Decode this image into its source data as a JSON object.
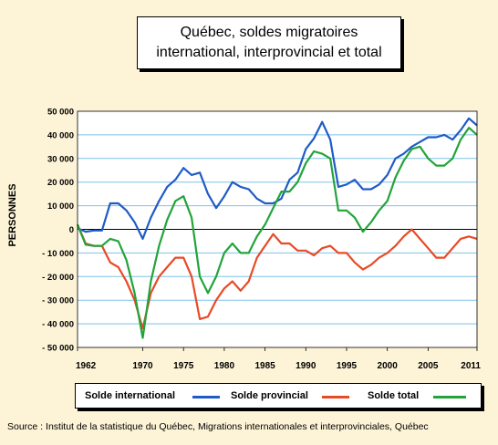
{
  "chart_data": {
    "type": "line",
    "title": [
      "Québec, soldes migratoires",
      "international, interprovincial et total"
    ],
    "ylabel": "PERSONNES",
    "ylim": [
      -50000,
      50000
    ],
    "yticks": [
      -50000,
      -40000,
      -30000,
      -20000,
      -10000,
      0,
      10000,
      20000,
      30000,
      40000,
      50000
    ],
    "ytick_labels": [
      "- 50 000",
      "- 40 000",
      "- 30 000",
      "- 20 000",
      "- 10 000",
      "0",
      "10 000",
      "20 000",
      "30 000",
      "40 000",
      "50 000"
    ],
    "xlim": [
      1962,
      2011
    ],
    "xticks": [
      1962,
      1970,
      1975,
      1980,
      1985,
      1990,
      1995,
      2000,
      2005,
      2011
    ],
    "xtick_labels": [
      "1962",
      "1970",
      "1975",
      "1980",
      "1985",
      "1990",
      "1995",
      "2000",
      "2005",
      "2011"
    ],
    "grid": true,
    "legend_position": "bottom",
    "series": [
      {
        "name": "Solde international",
        "color": "#1f5bc7",
        "x": [
          1962,
          1963,
          1964,
          1965,
          1966,
          1967,
          1968,
          1969,
          1970,
          1971,
          1972,
          1973,
          1974,
          1975,
          1976,
          1977,
          1978,
          1979,
          1980,
          1981,
          1982,
          1983,
          1984,
          1985,
          1986,
          1987,
          1988,
          1989,
          1990,
          1991,
          1992,
          1993,
          1994,
          1995,
          1996,
          1997,
          1998,
          1999,
          2000,
          2001,
          2002,
          2003,
          2004,
          2005,
          2006,
          2007,
          2008,
          2009,
          2010,
          2011
        ],
        "y": [
          500,
          -1000,
          -500,
          -500,
          11000,
          11000,
          8000,
          3000,
          -4000,
          5000,
          12000,
          18000,
          21000,
          26000,
          23000,
          24000,
          15000,
          9000,
          14000,
          20000,
          18000,
          17000,
          13000,
          11000,
          11000,
          13000,
          21000,
          24000,
          34000,
          38500,
          45500,
          38000,
          18000,
          19000,
          21000,
          17000,
          17000,
          19000,
          23000,
          30000,
          32000,
          35000,
          37000,
          39000,
          39000,
          40000,
          38000,
          42000,
          47000,
          44000
        ]
      },
      {
        "name": "Solde provincial",
        "color": "#e84a27",
        "x": [
          1962,
          1963,
          1964,
          1965,
          1966,
          1967,
          1968,
          1969,
          1970,
          1971,
          1972,
          1973,
          1974,
          1975,
          1976,
          1977,
          1978,
          1979,
          1980,
          1981,
          1982,
          1983,
          1984,
          1985,
          1986,
          1987,
          1988,
          1989,
          1990,
          1991,
          1992,
          1993,
          1994,
          1995,
          1996,
          1997,
          1998,
          1999,
          2000,
          2001,
          2002,
          2003,
          2004,
          2005,
          2006,
          2007,
          2008,
          2009,
          2010,
          2011
        ],
        "y": [
          2000,
          -6000,
          -7000,
          -7000,
          -14000,
          -16000,
          -22000,
          -30000,
          -42000,
          -27000,
          -20000,
          -16000,
          -12000,
          -12000,
          -20000,
          -38000,
          -37000,
          -30000,
          -25000,
          -22000,
          -26000,
          -22000,
          -12000,
          -7000,
          -2000,
          -6000,
          -6000,
          -9000,
          -9000,
          -11000,
          -8000,
          -7000,
          -10000,
          -10000,
          -14000,
          -17000,
          -15000,
          -12000,
          -10000,
          -7000,
          -3000,
          0,
          -4000,
          -8000,
          -12000,
          -12000,
          -8000,
          -4000,
          -3000,
          -4000
        ]
      },
      {
        "name": "Solde total",
        "color": "#22a43a",
        "x": [
          1962,
          1963,
          1964,
          1965,
          1966,
          1967,
          1968,
          1969,
          1970,
          1971,
          1972,
          1973,
          1974,
          1975,
          1976,
          1977,
          1978,
          1979,
          1980,
          1981,
          1982,
          1983,
          1984,
          1985,
          1986,
          1987,
          1988,
          1989,
          1990,
          1991,
          1992,
          1993,
          1994,
          1995,
          1996,
          1997,
          1998,
          1999,
          2000,
          2001,
          2002,
          2003,
          2004,
          2005,
          2006,
          2007,
          2008,
          2009,
          2010,
          2011
        ],
        "y": [
          2000,
          -6500,
          -7000,
          -7000,
          -4000,
          -5000,
          -13000,
          -27000,
          -46000,
          -22000,
          -7000,
          4000,
          12000,
          14000,
          5000,
          -20000,
          -27000,
          -20000,
          -10000,
          -6000,
          -10000,
          -10000,
          -3000,
          2000,
          9000,
          16000,
          16000,
          20000,
          28000,
          33000,
          32000,
          30000,
          8000,
          8000,
          5000,
          -1000,
          3000,
          8000,
          12000,
          22000,
          29000,
          34000,
          35000,
          30000,
          27000,
          27000,
          30000,
          38000,
          43000,
          40000
        ]
      }
    ]
  },
  "source": "Source : Institut de la statistique du Québec, Migrations internationales et interprovinciales, Québec"
}
